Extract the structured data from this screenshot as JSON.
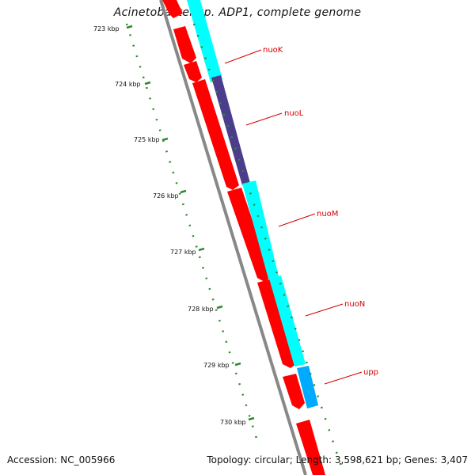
{
  "title": "Acinetobacter sp. ADP1, complete genome",
  "footer": {
    "accession": "Accession: NC_005966",
    "summary": "Topology: circular; Length: 3,598,621 bp; Genes: 3,407"
  },
  "colors": {
    "forward_genes": "#ff0000",
    "reverse_cds": "#00ffff",
    "highlight_cds": "#4b3d8c",
    "upp_cds": "#00aaff",
    "backbone": "#888888",
    "ticks": "#2e8b2e",
    "labels": "#d40000"
  },
  "scale_labels": [
    "723 kbp",
    "724 kbp",
    "725 kbp",
    "726 kbp",
    "727 kbp",
    "728 kbp",
    "729 kbp",
    "730 kbp"
  ],
  "gene_labels": [
    "nuoK",
    "nuoL",
    "nuoM",
    "nuoN",
    "upp"
  ]
}
